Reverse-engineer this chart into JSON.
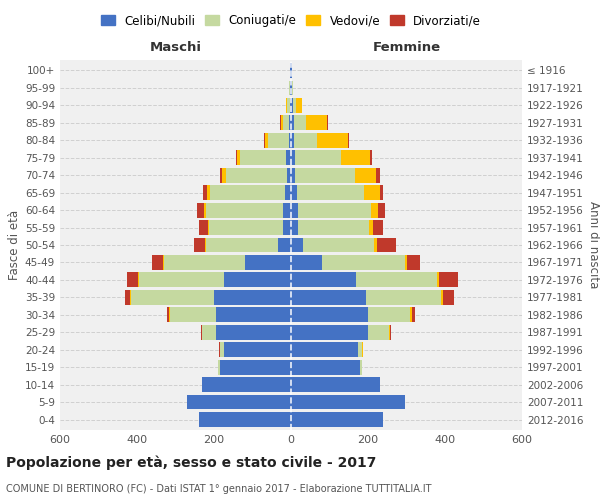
{
  "age_groups": [
    "0-4",
    "5-9",
    "10-14",
    "15-19",
    "20-24",
    "25-29",
    "30-34",
    "35-39",
    "40-44",
    "45-49",
    "50-54",
    "55-59",
    "60-64",
    "65-69",
    "70-74",
    "75-79",
    "80-84",
    "85-89",
    "90-94",
    "95-99",
    "100+"
  ],
  "birth_years": [
    "2012-2016",
    "2007-2011",
    "2002-2006",
    "1997-2001",
    "1992-1996",
    "1987-1991",
    "1982-1986",
    "1977-1981",
    "1972-1976",
    "1967-1971",
    "1962-1966",
    "1957-1961",
    "1952-1956",
    "1947-1951",
    "1942-1946",
    "1937-1941",
    "1932-1936",
    "1927-1931",
    "1922-1926",
    "1917-1921",
    "≤ 1916"
  ],
  "males": {
    "celibi": [
      240,
      270,
      230,
      185,
      175,
      195,
      195,
      200,
      175,
      120,
      35,
      22,
      20,
      15,
      10,
      12,
      5,
      4,
      3,
      2,
      2
    ],
    "coniugati": [
      0,
      0,
      0,
      5,
      10,
      35,
      120,
      215,
      220,
      210,
      185,
      190,
      200,
      195,
      160,
      120,
      55,
      18,
      8,
      2,
      0
    ],
    "vedovi": [
      0,
      0,
      0,
      0,
      0,
      1,
      1,
      2,
      3,
      3,
      3,
      4,
      5,
      8,
      10,
      8,
      8,
      4,
      2,
      0,
      0
    ],
    "divorziati": [
      0,
      0,
      0,
      0,
      2,
      3,
      5,
      15,
      28,
      28,
      30,
      22,
      18,
      10,
      5,
      4,
      2,
      2,
      0,
      0,
      0
    ]
  },
  "females": {
    "nubili": [
      240,
      295,
      230,
      180,
      175,
      200,
      200,
      195,
      170,
      80,
      30,
      18,
      18,
      15,
      10,
      10,
      8,
      8,
      5,
      2,
      2
    ],
    "coniugate": [
      0,
      0,
      0,
      5,
      10,
      55,
      110,
      195,
      210,
      215,
      185,
      185,
      190,
      175,
      155,
      120,
      60,
      30,
      8,
      2,
      0
    ],
    "vedove": [
      0,
      0,
      0,
      0,
      1,
      2,
      3,
      4,
      5,
      5,
      8,
      10,
      18,
      40,
      55,
      75,
      80,
      55,
      15,
      2,
      0
    ],
    "divorziate": [
      0,
      0,
      0,
      0,
      2,
      2,
      8,
      30,
      50,
      35,
      50,
      25,
      18,
      10,
      10,
      5,
      2,
      2,
      0,
      0,
      0
    ]
  },
  "colors": {
    "celibi": "#4472c4",
    "coniugati": "#c5d9a0",
    "vedovi": "#ffc000",
    "divorziati": "#c0392b"
  },
  "legend_labels": [
    "Celibi/Nubili",
    "Coniugati/e",
    "Vedovi/e",
    "Divorziati/e"
  ],
  "title": "Popolazione per età, sesso e stato civile - 2017",
  "subtitle": "COMUNE DI BERTINORO (FC) - Dati ISTAT 1° gennaio 2017 - Elaborazione TUTTITALIA.IT",
  "xlabel_left": "Maschi",
  "xlabel_right": "Femmine",
  "ylabel_left": "Fasce di età",
  "ylabel_right": "Anni di nascita",
  "xlim": 600,
  "background_color": "#f0f0f0"
}
